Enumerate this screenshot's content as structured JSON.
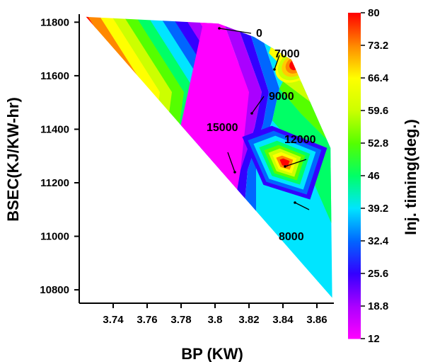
{
  "chart_data": {
    "type": "contour",
    "xlabel": "BP (KW)",
    "ylabel": "BSEC(KJ/KW-hr)",
    "colorbar_label": "Inj. timing(deg.)",
    "x_ticks": [
      "3.74",
      "3.76",
      "3.78",
      "3.8",
      "3.82",
      "3.84",
      "3.86"
    ],
    "y_ticks": [
      "10800",
      "11000",
      "11200",
      "11400",
      "11600",
      "11800"
    ],
    "xlim": [
      3.72,
      3.87
    ],
    "ylim": [
      10750,
      11830
    ],
    "colorbar_ticks": [
      "12",
      "18.8",
      "25.6",
      "32.4",
      "39.2",
      "46",
      "52.8",
      "59.6",
      "66.4",
      "73.2",
      "80"
    ],
    "colorbar_colors": [
      "#ff00ff",
      "#aa00ff",
      "#3300ff",
      "#0066ff",
      "#00e5ff",
      "#00ff66",
      "#55ff00",
      "#ccff00",
      "#ffff00",
      "#ff8800",
      "#ff0000"
    ],
    "region_boundary": [
      [
        3.724,
        11820
      ],
      [
        3.802,
        11795
      ],
      [
        3.823,
        11745
      ],
      [
        3.845,
        11660
      ],
      [
        3.868,
        11330
      ],
      [
        3.869,
        10770
      ]
    ],
    "contour_labels": [
      {
        "text": "0",
        "x": 3.818,
        "y": 11780
      },
      {
        "text": "7000",
        "x": 3.849,
        "y": 11700
      },
      {
        "text": "9000",
        "x": 3.826,
        "y": 11520
      },
      {
        "text": "15000",
        "x": 3.806,
        "y": 11390
      },
      {
        "text": "12000",
        "x": 3.844,
        "y": 11325
      },
      {
        "text": "8000",
        "x": 3.838,
        "y": 11010
      }
    ]
  }
}
